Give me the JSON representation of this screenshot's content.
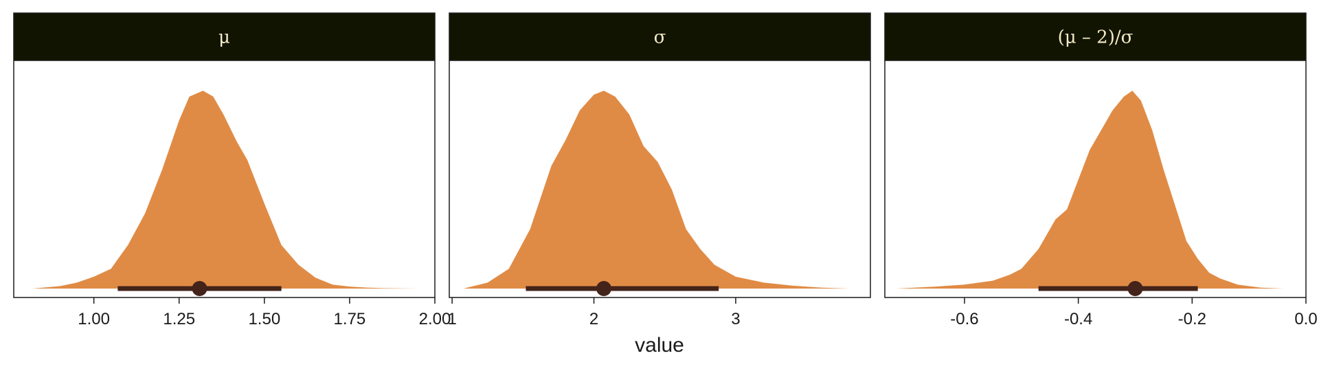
{
  "chart_data": {
    "type": "area",
    "xlabel": "value",
    "ylabel": "",
    "grid": false,
    "colors": {
      "density": "#e08b45",
      "interval": "#43231a",
      "strip": "#121402",
      "strip_text": "#f3ebc6"
    },
    "panels": [
      {
        "strip_label": "μ",
        "xlim": [
          0.765,
          2.0
        ],
        "ticks": [
          1.0,
          1.25,
          1.5,
          1.75,
          2.0
        ],
        "tick_labels": [
          "1.00",
          "1.25",
          "1.50",
          "1.75",
          "2.00"
        ],
        "density": {
          "x": [
            0.82,
            0.9,
            0.95,
            1.0,
            1.05,
            1.1,
            1.15,
            1.2,
            1.25,
            1.28,
            1.32,
            1.35,
            1.38,
            1.42,
            1.45,
            1.5,
            1.55,
            1.6,
            1.65,
            1.7,
            1.75,
            1.8,
            1.85,
            1.95
          ],
          "y": [
            0.0,
            0.012,
            0.03,
            0.06,
            0.1,
            0.22,
            0.38,
            0.6,
            0.85,
            0.97,
            1.0,
            0.97,
            0.88,
            0.74,
            0.65,
            0.43,
            0.22,
            0.12,
            0.055,
            0.02,
            0.01,
            0.005,
            0.002,
            0.0
          ]
        },
        "interval": {
          "point": 1.31,
          "low": 1.07,
          "high": 1.55
        }
      },
      {
        "strip_label": "σ",
        "xlim": [
          0.98,
          3.95
        ],
        "ticks": [
          1,
          2,
          3
        ],
        "tick_labels": [
          "1",
          "2",
          "3"
        ],
        "density": {
          "x": [
            1.08,
            1.25,
            1.4,
            1.55,
            1.7,
            1.8,
            1.9,
            2.0,
            2.07,
            2.15,
            2.25,
            2.35,
            2.45,
            2.55,
            2.65,
            2.75,
            2.85,
            3.0,
            3.2,
            3.4,
            3.6,
            3.8
          ],
          "y": [
            0.0,
            0.03,
            0.1,
            0.3,
            0.62,
            0.75,
            0.9,
            0.98,
            1.0,
            0.97,
            0.88,
            0.72,
            0.64,
            0.5,
            0.3,
            0.2,
            0.12,
            0.06,
            0.03,
            0.015,
            0.005,
            0.0
          ]
        },
        "interval": {
          "point": 2.07,
          "low": 1.52,
          "high": 2.88
        }
      },
      {
        "strip_label": "(μ – 2)/σ",
        "xlim": [
          -0.74,
          0.0
        ],
        "ticks": [
          -0.6,
          -0.4,
          -0.2,
          0.0
        ],
        "tick_labels": [
          "-0.6",
          "-0.4",
          "-0.2",
          "0.0"
        ],
        "density": {
          "x": [
            -0.72,
            -0.65,
            -0.6,
            -0.55,
            -0.52,
            -0.5,
            -0.47,
            -0.44,
            -0.42,
            -0.4,
            -0.38,
            -0.36,
            -0.34,
            -0.32,
            -0.305,
            -0.29,
            -0.27,
            -0.25,
            -0.23,
            -0.21,
            -0.19,
            -0.17,
            -0.15,
            -0.12,
            -0.08,
            -0.04
          ],
          "y": [
            0.0,
            0.01,
            0.02,
            0.04,
            0.07,
            0.1,
            0.2,
            0.35,
            0.4,
            0.55,
            0.7,
            0.8,
            0.9,
            0.97,
            1.0,
            0.95,
            0.8,
            0.6,
            0.42,
            0.24,
            0.15,
            0.08,
            0.05,
            0.02,
            0.005,
            0.0
          ]
        },
        "interval": {
          "point": -0.3,
          "low": -0.47,
          "high": -0.19
        }
      }
    ]
  }
}
